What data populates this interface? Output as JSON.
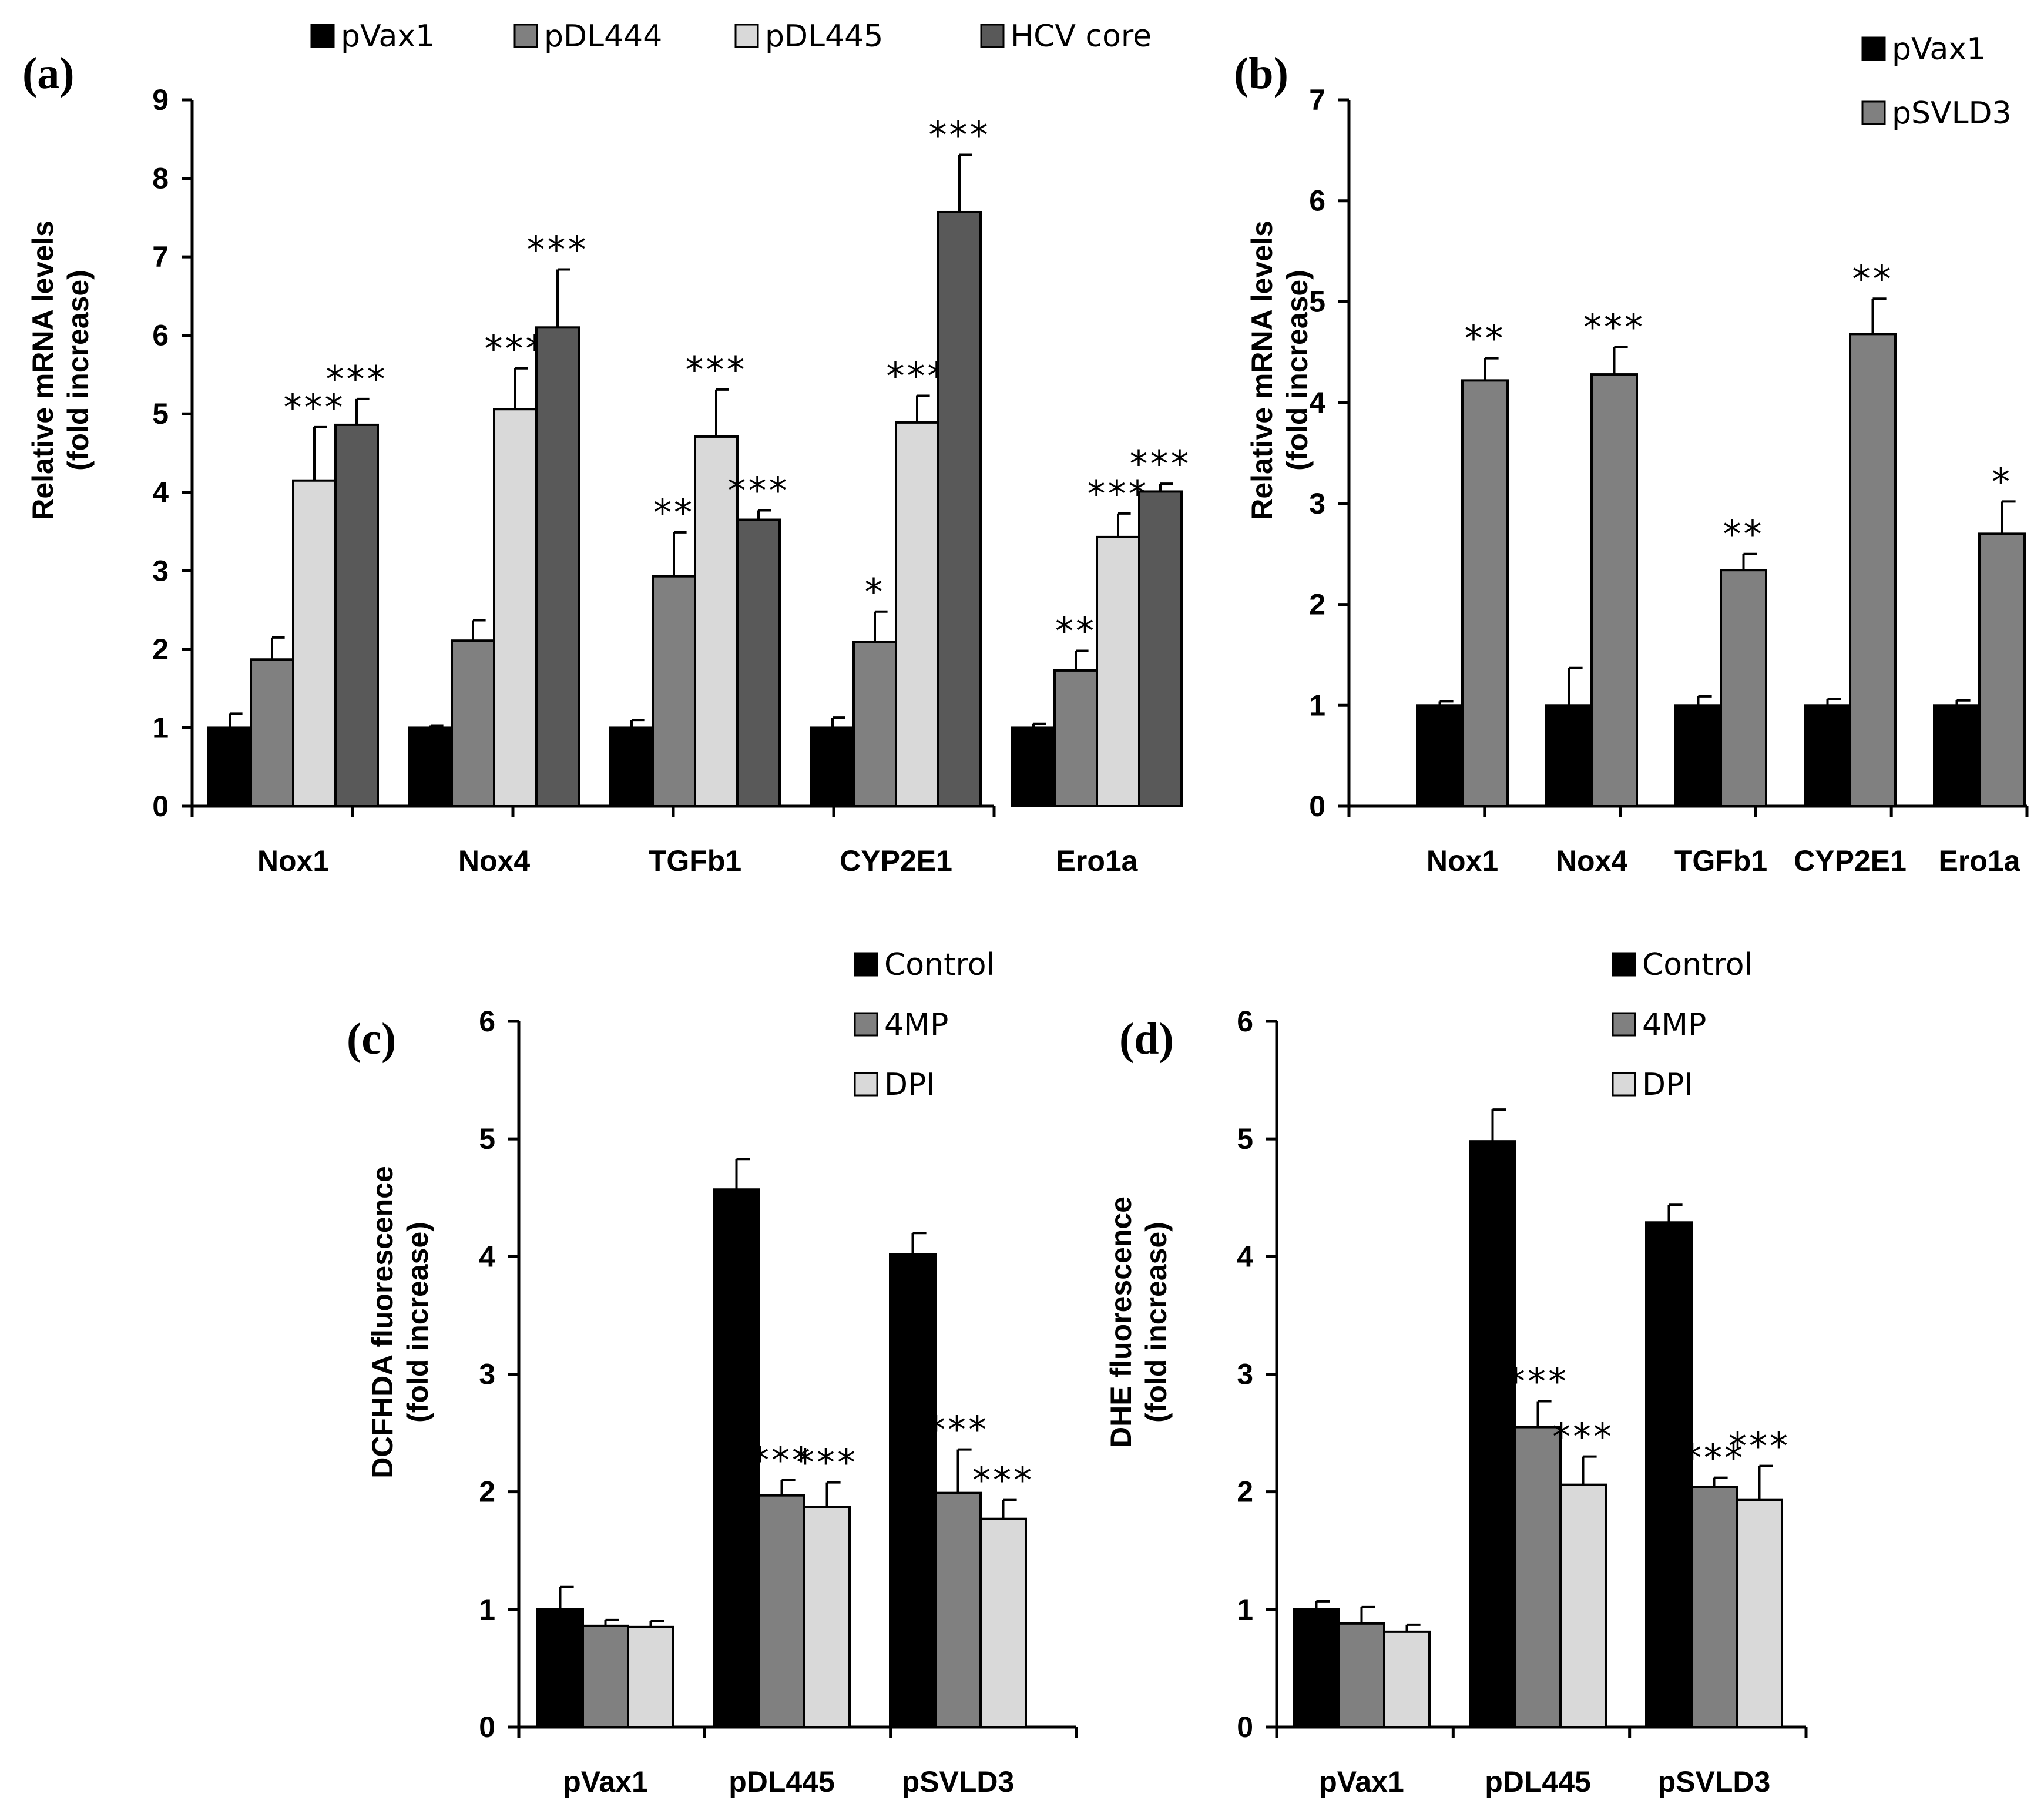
{
  "colors": {
    "black": "#000000",
    "gray": "#808080",
    "light": "#d9d9d9",
    "dark": "#595959"
  },
  "chart_data": [
    {
      "panel": "(a)",
      "type": "bar",
      "ylabel": [
        "Relative mRNA levels",
        "(fold increase)"
      ],
      "ylim": [
        0,
        9
      ],
      "yticks": [
        "0",
        "1",
        "2",
        "3",
        "4",
        "5",
        "6",
        "7",
        "8",
        "9"
      ],
      "categories": [
        "Nox1",
        "Nox4",
        "TGFb1",
        "CYP2E1",
        "Ero1a"
      ],
      "legend_position": "top",
      "series": [
        {
          "name": "pVax1",
          "color": "#000000",
          "values": [
            1,
            1,
            1,
            1,
            1
          ],
          "errors": [
            0.18,
            0.03,
            0.1,
            0.13,
            0.05
          ],
          "stars": [
            "",
            "",
            "",
            "",
            ""
          ]
        },
        {
          "name": "pDL444",
          "color": "#808080",
          "values": [
            1.87,
            2.11,
            2.93,
            2.09,
            1.73
          ],
          "errors": [
            0.28,
            0.26,
            0.56,
            0.39,
            0.25
          ],
          "stars": [
            "",
            "",
            "**",
            "*",
            "**"
          ]
        },
        {
          "name": "pDL445",
          "color": "#d9d9d9",
          "values": [
            4.15,
            5.06,
            4.71,
            4.89,
            3.43
          ],
          "errors": [
            0.68,
            0.52,
            0.6,
            0.34,
            0.3
          ],
          "stars": [
            "***",
            "***",
            "***",
            "***",
            "***"
          ]
        },
        {
          "name": "HCV core",
          "color": "#595959",
          "values": [
            4.86,
            6.1,
            3.65,
            7.57,
            4.01
          ],
          "errors": [
            0.33,
            0.74,
            0.12,
            0.73,
            0.1
          ],
          "stars": [
            "***",
            "***",
            "***",
            "***",
            "***"
          ]
        }
      ]
    },
    {
      "panel": "(b)",
      "type": "bar",
      "ylabel": [
        "Relative mRNA levels",
        "(fold increase)"
      ],
      "ylim": [
        0,
        7
      ],
      "yticks": [
        "0",
        "1",
        "2",
        "3",
        "4",
        "5",
        "6",
        "7"
      ],
      "categories": [
        "Nox1",
        "Nox4",
        "TGFb1",
        "CYP2E1",
        "Ero1a"
      ],
      "legend_position": "top-right",
      "series": [
        {
          "name": "pVax1",
          "color": "#000000",
          "values": [
            1,
            1,
            1,
            1,
            1
          ],
          "errors": [
            0.04,
            0.37,
            0.09,
            0.06,
            0.05
          ],
          "stars": [
            "",
            "",
            "",
            "",
            ""
          ]
        },
        {
          "name": "pSVLD3",
          "color": "#808080",
          "values": [
            4.22,
            4.28,
            2.34,
            4.68,
            2.7
          ],
          "errors": [
            0.22,
            0.27,
            0.16,
            0.35,
            0.32
          ],
          "stars": [
            "**",
            "***",
            "**",
            "**",
            "*"
          ]
        }
      ]
    },
    {
      "panel": "(c)",
      "type": "bar",
      "ylabel": [
        "DCFHDA fluorescence",
        "(fold increase)"
      ],
      "ylim": [
        0,
        6
      ],
      "yticks": [
        "0",
        "1",
        "2",
        "3",
        "4",
        "5",
        "6"
      ],
      "categories": [
        "pVax1",
        "pDL445",
        "pSVLD3"
      ],
      "legend_position": "top-right",
      "series": [
        {
          "name": "Control",
          "color": "#000000",
          "values": [
            1,
            4.57,
            4.02
          ],
          "errors": [
            0.19,
            0.26,
            0.18
          ],
          "stars": [
            "",
            "",
            ""
          ]
        },
        {
          "name": "4MP",
          "color": "#808080",
          "values": [
            0.86,
            1.97,
            1.99
          ],
          "errors": [
            0.05,
            0.13,
            0.37
          ],
          "stars": [
            "",
            "***",
            "***"
          ]
        },
        {
          "name": "DPI",
          "color": "#d9d9d9",
          "values": [
            0.85,
            1.87,
            1.77
          ],
          "errors": [
            0.05,
            0.21,
            0.16
          ],
          "stars": [
            "",
            "***",
            "***"
          ]
        }
      ]
    },
    {
      "panel": "(d)",
      "type": "bar",
      "ylabel": [
        "DHE fluorescence",
        "(fold increase)"
      ],
      "ylim": [
        0,
        6
      ],
      "yticks": [
        "0",
        "1",
        "2",
        "3",
        "4",
        "5",
        "6"
      ],
      "categories": [
        "pVax1",
        "pDL445",
        "pSVLD3"
      ],
      "legend_position": "top-right",
      "series": [
        {
          "name": "Control",
          "color": "#000000",
          "values": [
            1,
            4.98,
            4.29
          ],
          "errors": [
            0.07,
            0.27,
            0.15
          ],
          "stars": [
            "",
            "",
            ""
          ]
        },
        {
          "name": "4MP",
          "color": "#808080",
          "values": [
            0.88,
            2.55,
            2.04
          ],
          "errors": [
            0.14,
            0.22,
            0.08
          ],
          "stars": [
            "",
            "***",
            "***"
          ]
        },
        {
          "name": "DPI",
          "color": "#d9d9d9",
          "values": [
            0.81,
            2.06,
            1.93
          ],
          "errors": [
            0.06,
            0.24,
            0.29
          ],
          "stars": [
            "",
            "***",
            "***"
          ]
        }
      ]
    }
  ]
}
